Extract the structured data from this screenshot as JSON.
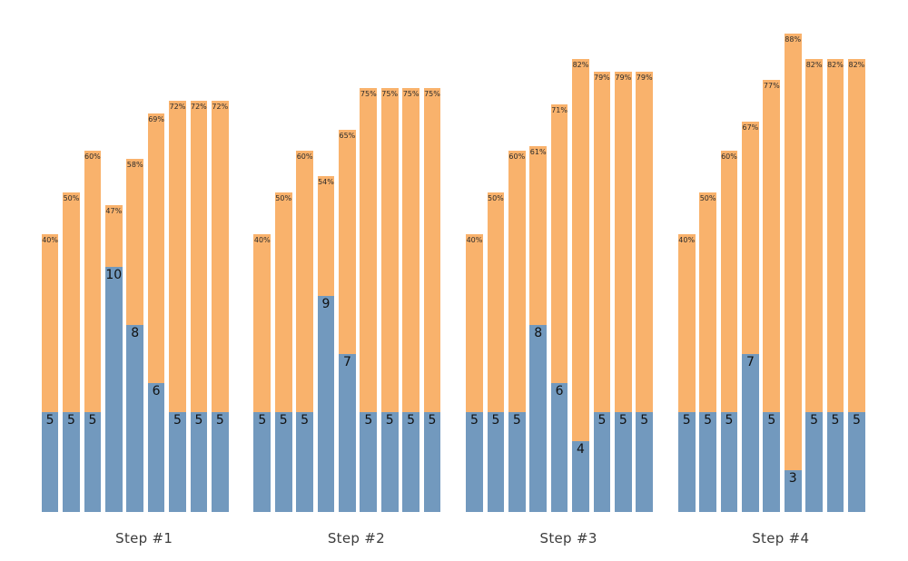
{
  "chart_data": {
    "type": "bar",
    "title": "",
    "xlabel": "",
    "ylabel": "",
    "legend": "none",
    "layout": {
      "grid": "off",
      "axes": "hidden",
      "arrangement": "4 side-by-side groups of 9 overlaid columns",
      "bar_semantics": "orange column height encodes the percent label; blue overlay height encodes the count label; both share one baseline"
    },
    "colors": {
      "percent_bar": "#F9B26C",
      "count_bar": "#7299BE",
      "count_label_text": "#111111",
      "percent_label_text": "#2b2b2b",
      "step_label_text": "#3c3c3c",
      "background": "#ffffff"
    },
    "groups": [
      {
        "label": "Step #1",
        "bars": [
          {
            "count": 5,
            "count_label": "5",
            "percent": 40,
            "percent_label": "40%"
          },
          {
            "count": 5,
            "count_label": "5",
            "percent": 50,
            "percent_label": "50%"
          },
          {
            "count": 5,
            "count_label": "5",
            "percent": 60,
            "percent_label": "60%"
          },
          {
            "count": 10,
            "count_label": "10",
            "percent": 47,
            "percent_label": "47%"
          },
          {
            "count": 8,
            "count_label": "8",
            "percent": 58,
            "percent_label": "58%"
          },
          {
            "count": 6,
            "count_label": "6",
            "percent": 69,
            "percent_label": "69%"
          },
          {
            "count": 5,
            "count_label": "5",
            "percent": 72,
            "percent_label": "72%"
          },
          {
            "count": 5,
            "count_label": "5",
            "percent": 72,
            "percent_label": "72%"
          },
          {
            "count": 5,
            "count_label": "5",
            "percent": 72,
            "percent_label": "72%"
          }
        ]
      },
      {
        "label": "Step #2",
        "bars": [
          {
            "count": 5,
            "count_label": "5",
            "percent": 40,
            "percent_label": "40%"
          },
          {
            "count": 5,
            "count_label": "5",
            "percent": 50,
            "percent_label": "50%"
          },
          {
            "count": 5,
            "count_label": "5",
            "percent": 60,
            "percent_label": "60%"
          },
          {
            "count": 9,
            "count_label": "9",
            "percent": 54,
            "percent_label": "54%"
          },
          {
            "count": 7,
            "count_label": "7",
            "percent": 65,
            "percent_label": "65%"
          },
          {
            "count": 5,
            "count_label": "5",
            "percent": 75,
            "percent_label": "75%"
          },
          {
            "count": 5,
            "count_label": "5",
            "percent": 75,
            "percent_label": "75%"
          },
          {
            "count": 5,
            "count_label": "5",
            "percent": 75,
            "percent_label": "75%"
          },
          {
            "count": 5,
            "count_label": "5",
            "percent": 75,
            "percent_label": "75%"
          }
        ]
      },
      {
        "label": "Step #3",
        "bars": [
          {
            "count": 5,
            "count_label": "5",
            "percent": 40,
            "percent_label": "40%"
          },
          {
            "count": 5,
            "count_label": "5",
            "percent": 50,
            "percent_label": "50%"
          },
          {
            "count": 5,
            "count_label": "5",
            "percent": 60,
            "percent_label": "60%"
          },
          {
            "count": 8,
            "count_label": "8",
            "percent": 61,
            "percent_label": "61%"
          },
          {
            "count": 6,
            "count_label": "6",
            "percent": 71,
            "percent_label": "71%"
          },
          {
            "count": 4,
            "count_label": "4",
            "percent": 82,
            "percent_label": "82%"
          },
          {
            "count": 5,
            "count_label": "5",
            "percent": 79,
            "percent_label": "79%"
          },
          {
            "count": 5,
            "count_label": "5",
            "percent": 79,
            "percent_label": "79%"
          },
          {
            "count": 5,
            "count_label": "5",
            "percent": 79,
            "percent_label": "79%"
          }
        ]
      },
      {
        "label": "Step #4",
        "bars": [
          {
            "count": 5,
            "count_label": "5",
            "percent": 40,
            "percent_label": "40%"
          },
          {
            "count": 5,
            "count_label": "5",
            "percent": 50,
            "percent_label": "50%"
          },
          {
            "count": 5,
            "count_label": "5",
            "percent": 60,
            "percent_label": "60%"
          },
          {
            "count": 7,
            "count_label": "7",
            "percent": 67,
            "percent_label": "67%"
          },
          {
            "count": 5,
            "count_label": "5",
            "percent": 77,
            "percent_label": "77%"
          },
          {
            "count": 3,
            "count_label": "3",
            "percent": 88,
            "percent_label": "88%"
          },
          {
            "count": 5,
            "count_label": "5",
            "percent": 82,
            "percent_label": "82%"
          },
          {
            "count": 5,
            "count_label": "5",
            "percent": 82,
            "percent_label": "82%"
          },
          {
            "count": 5,
            "count_label": "5",
            "percent": 82,
            "percent_label": "82%"
          }
        ]
      }
    ]
  }
}
